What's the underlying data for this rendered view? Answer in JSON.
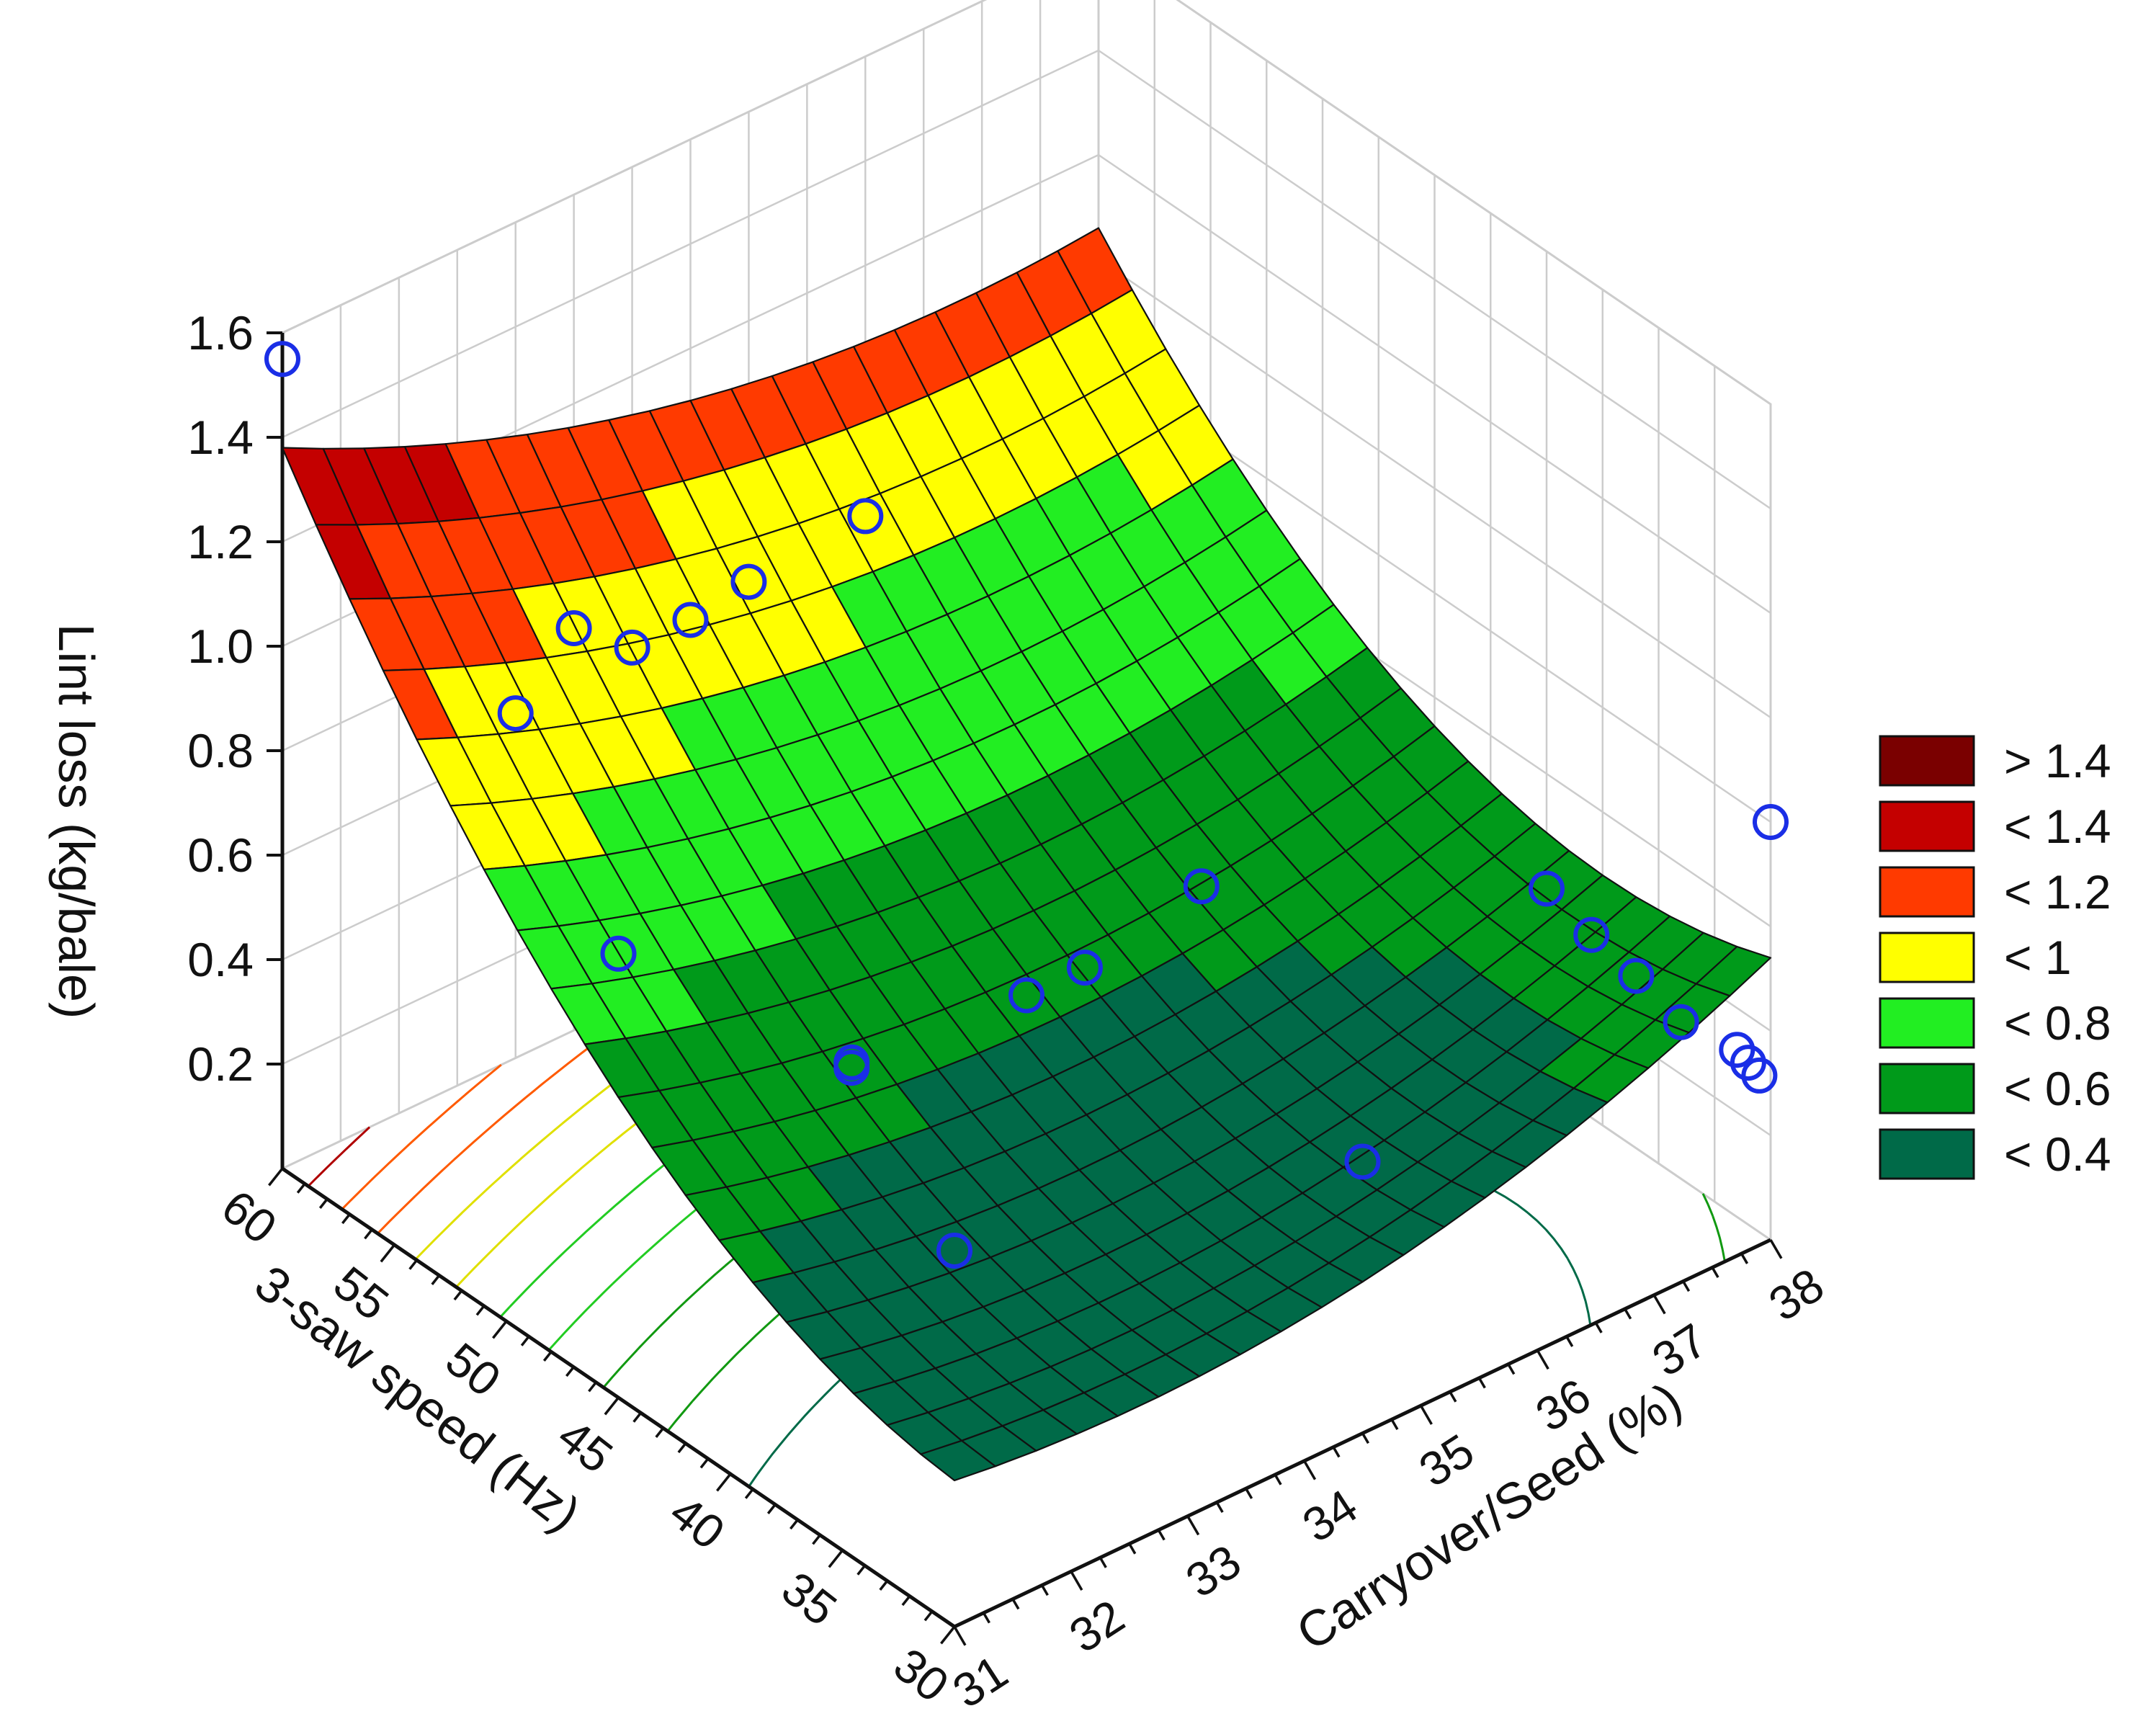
{
  "chart_data": {
    "type": "surface3d",
    "z_axis": {
      "label": "Lint loss (kg/bale)",
      "ticks": [
        "0.2",
        "0.4",
        "0.6",
        "0.8",
        "1.0",
        "1.2",
        "1.4",
        "1.6"
      ],
      "range": [
        0.0,
        1.6
      ]
    },
    "saw_axis": {
      "label": "3-saw speed (Hz)",
      "ticks": [
        "60",
        "55",
        "50",
        "45",
        "40",
        "35",
        "30"
      ],
      "range": [
        30,
        60
      ]
    },
    "carry_axis": {
      "label": "Carryover/Seed (%)",
      "ticks": [
        "31",
        "32",
        "33",
        "34",
        "35",
        "36",
        "37",
        "38"
      ],
      "range": [
        31,
        38
      ]
    },
    "legend": [
      {
        "label": "> 1.4",
        "color": "#7a0000"
      },
      {
        "label": "< 1.4",
        "color": "#c40000"
      },
      {
        "label": "< 1.2",
        "color": "#ff3a00"
      },
      {
        "label": "< 1",
        "color": "#ffff00"
      },
      {
        "label": "< 0.8",
        "color": "#22ee22"
      },
      {
        "label": "< 0.6",
        "color": "#009a1a"
      },
      {
        "label": "< 0.4",
        "color": "#006a48"
      }
    ],
    "contour_levels": [
      1.4,
      1.3,
      1.2,
      1.1,
      1.0,
      0.9,
      0.8,
      0.7,
      0.6,
      0.5,
      0.4
    ],
    "observations": [
      {
        "saw": 60,
        "carry": 31,
        "loss": 1.55
      },
      {
        "saw": 60,
        "carry": 33.5,
        "loss": 0.77
      },
      {
        "saw": 30,
        "carry": 31,
        "loss": 0.72
      },
      {
        "saw": 30,
        "carry": 38,
        "loss": 0.8
      },
      {
        "saw": 45,
        "carry": 31,
        "loss": 0.85
      },
      {
        "saw": 45,
        "carry": 33,
        "loss": 0.42
      },
      {
        "saw": 45,
        "carry": 33,
        "loss": 0.43
      },
      {
        "saw": 45,
        "carry": 34.5,
        "loss": 0.4
      },
      {
        "saw": 45,
        "carry": 35,
        "loss": 0.4
      },
      {
        "saw": 45,
        "carry": 36,
        "loss": 0.45
      },
      {
        "saw": 30,
        "carry": 34.5,
        "loss": 0.52
      },
      {
        "saw": 40,
        "carry": 38,
        "loss": 0.38
      },
      {
        "saw": 38,
        "carry": 38,
        "loss": 0.35
      },
      {
        "saw": 36,
        "carry": 38,
        "loss": 0.33
      },
      {
        "saw": 34,
        "carry": 38,
        "loss": 0.3
      },
      {
        "saw": 30.5,
        "carry": 38,
        "loss": 0.3
      },
      {
        "saw": 31,
        "carry": 38,
        "loss": 0.31
      },
      {
        "saw": 31.5,
        "carry": 38,
        "loss": 0.32
      },
      {
        "saw": 60,
        "carry": 36,
        "loss": 0.72
      },
      {
        "saw": 60,
        "carry": 35,
        "loss": 0.7
      },
      {
        "saw": 60,
        "carry": 34.5,
        "loss": 0.68
      },
      {
        "saw": 60,
        "carry": 34,
        "loss": 0.68
      },
      {
        "saw": 60,
        "carry": 33,
        "loss": 0.66
      }
    ]
  }
}
